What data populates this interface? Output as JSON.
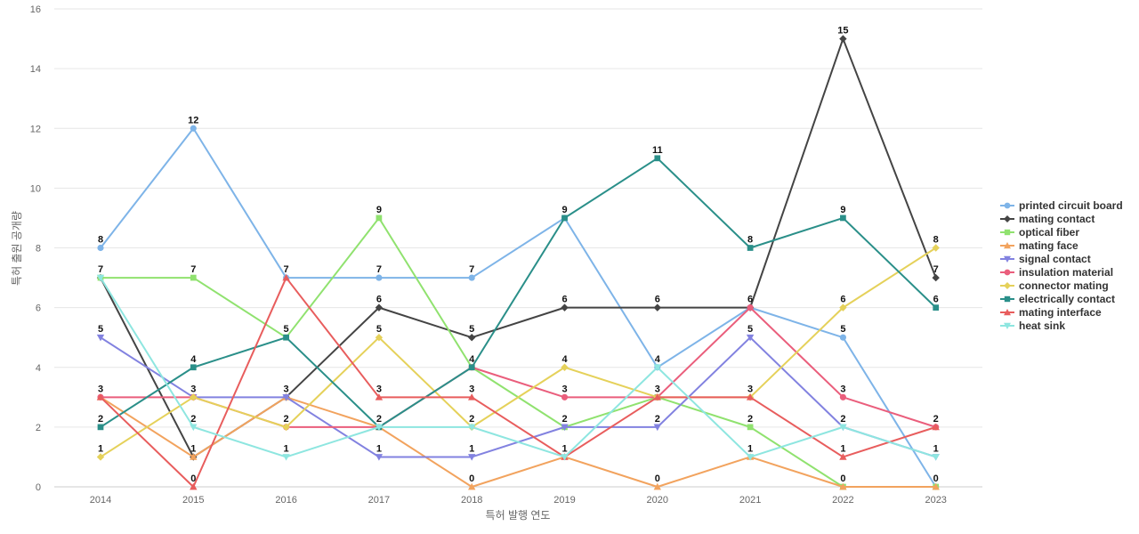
{
  "chart_data": {
    "type": "line",
    "xlabel": "특허 발행 연도",
    "ylabel": "특허 출원 공개량",
    "ylim": [
      0,
      16
    ],
    "yticks": [
      0,
      2,
      4,
      6,
      8,
      10,
      12,
      14,
      16
    ],
    "grid": true,
    "legend_position": "right",
    "categories": [
      "2014",
      "2015",
      "2016",
      "2017",
      "2018",
      "2019",
      "2020",
      "2021",
      "2022",
      "2023"
    ],
    "series": [
      {
        "name": "printed circuit board",
        "color": "#7eb4e8",
        "marker": "circle",
        "values": [
          8,
          12,
          7,
          7,
          7,
          9,
          4,
          6,
          5,
          0
        ]
      },
      {
        "name": "mating contact",
        "color": "#444444",
        "marker": "diamond",
        "values": [
          7,
          1,
          3,
          6,
          5,
          6,
          6,
          6,
          15,
          7
        ]
      },
      {
        "name": "optical fiber",
        "color": "#90e26f",
        "marker": "square",
        "values": [
          7,
          7,
          5,
          9,
          4,
          2,
          3,
          2,
          0,
          0
        ]
      },
      {
        "name": "mating face",
        "color": "#f2a35e",
        "marker": "triangle-up",
        "values": [
          3,
          1,
          3,
          2,
          0,
          1,
          0,
          1,
          0,
          0
        ]
      },
      {
        "name": "signal contact",
        "color": "#8282e0",
        "marker": "triangle-down",
        "values": [
          5,
          3,
          3,
          1,
          1,
          2,
          2,
          5,
          2,
          1
        ]
      },
      {
        "name": "insulation material",
        "color": "#ea5e7c",
        "marker": "circle",
        "values": [
          3,
          3,
          2,
          2,
          4,
          3,
          3,
          6,
          3,
          2
        ]
      },
      {
        "name": "connector mating",
        "color": "#e5d15a",
        "marker": "diamond",
        "values": [
          1,
          3,
          2,
          5,
          2,
          4,
          3,
          3,
          6,
          8
        ]
      },
      {
        "name": "electrically contact",
        "color": "#2a8f89",
        "marker": "square",
        "values": [
          2,
          4,
          5,
          2,
          4,
          9,
          11,
          8,
          9,
          6
        ]
      },
      {
        "name": "mating interface",
        "color": "#e85d5d",
        "marker": "triangle-up",
        "values": [
          3,
          0,
          7,
          3,
          3,
          1,
          3,
          3,
          1,
          2
        ]
      },
      {
        "name": "heat sink",
        "color": "#8ee6e0",
        "marker": "triangle-down",
        "values": [
          7,
          2,
          1,
          2,
          2,
          1,
          4,
          1,
          2,
          1
        ]
      }
    ],
    "data_labels": [
      {
        "x": "2014",
        "y": 8,
        "text": "8"
      },
      {
        "x": "2014",
        "y": 7,
        "text": "7"
      },
      {
        "x": "2014",
        "y": 5,
        "text": "5"
      },
      {
        "x": "2014",
        "y": 3,
        "text": "3"
      },
      {
        "x": "2014",
        "y": 2,
        "text": "2"
      },
      {
        "x": "2014",
        "y": 1,
        "text": "1"
      },
      {
        "x": "2015",
        "y": 12,
        "text": "12"
      },
      {
        "x": "2015",
        "y": 7,
        "text": "7"
      },
      {
        "x": "2015",
        "y": 4,
        "text": "4"
      },
      {
        "x": "2015",
        "y": 3,
        "text": "3"
      },
      {
        "x": "2015",
        "y": 2,
        "text": "2"
      },
      {
        "x": "2015",
        "y": 1,
        "text": "1"
      },
      {
        "x": "2015",
        "y": 0,
        "text": "0"
      },
      {
        "x": "2016",
        "y": 7,
        "text": "7"
      },
      {
        "x": "2016",
        "y": 5,
        "text": "5"
      },
      {
        "x": "2016",
        "y": 3,
        "text": "3"
      },
      {
        "x": "2016",
        "y": 2,
        "text": "2"
      },
      {
        "x": "2016",
        "y": 1,
        "text": "1"
      },
      {
        "x": "2017",
        "y": 9,
        "text": "9"
      },
      {
        "x": "2017",
        "y": 7,
        "text": "7"
      },
      {
        "x": "2017",
        "y": 6,
        "text": "6"
      },
      {
        "x": "2017",
        "y": 5,
        "text": "5"
      },
      {
        "x": "2017",
        "y": 3,
        "text": "3"
      },
      {
        "x": "2017",
        "y": 2,
        "text": "2"
      },
      {
        "x": "2017",
        "y": 1,
        "text": "1"
      },
      {
        "x": "2018",
        "y": 7,
        "text": "7"
      },
      {
        "x": "2018",
        "y": 5,
        "text": "5"
      },
      {
        "x": "2018",
        "y": 4,
        "text": "4"
      },
      {
        "x": "2018",
        "y": 3,
        "text": "3"
      },
      {
        "x": "2018",
        "y": 2,
        "text": "2"
      },
      {
        "x": "2018",
        "y": 1,
        "text": "1"
      },
      {
        "x": "2018",
        "y": 0,
        "text": "0"
      },
      {
        "x": "2019",
        "y": 9,
        "text": "9"
      },
      {
        "x": "2019",
        "y": 6,
        "text": "6"
      },
      {
        "x": "2019",
        "y": 4,
        "text": "4"
      },
      {
        "x": "2019",
        "y": 3,
        "text": "3"
      },
      {
        "x": "2019",
        "y": 2,
        "text": "2"
      },
      {
        "x": "2019",
        "y": 1,
        "text": "1"
      },
      {
        "x": "2020",
        "y": 11,
        "text": "11"
      },
      {
        "x": "2020",
        "y": 6,
        "text": "6"
      },
      {
        "x": "2020",
        "y": 4,
        "text": "4"
      },
      {
        "x": "2020",
        "y": 3,
        "text": "3"
      },
      {
        "x": "2020",
        "y": 2,
        "text": "2"
      },
      {
        "x": "2020",
        "y": 0,
        "text": "0"
      },
      {
        "x": "2021",
        "y": 8,
        "text": "8"
      },
      {
        "x": "2021",
        "y": 6,
        "text": "6"
      },
      {
        "x": "2021",
        "y": 5,
        "text": "5"
      },
      {
        "x": "2021",
        "y": 3,
        "text": "3"
      },
      {
        "x": "2021",
        "y": 2,
        "text": "2"
      },
      {
        "x": "2021",
        "y": 1,
        "text": "1"
      },
      {
        "x": "2022",
        "y": 15,
        "text": "15"
      },
      {
        "x": "2022",
        "y": 9,
        "text": "9"
      },
      {
        "x": "2022",
        "y": 6,
        "text": "6"
      },
      {
        "x": "2022",
        "y": 5,
        "text": "5"
      },
      {
        "x": "2022",
        "y": 3,
        "text": "3"
      },
      {
        "x": "2022",
        "y": 2,
        "text": "2"
      },
      {
        "x": "2022",
        "y": 1,
        "text": "1"
      },
      {
        "x": "2022",
        "y": 0,
        "text": "0"
      },
      {
        "x": "2023",
        "y": 8,
        "text": "8"
      },
      {
        "x": "2023",
        "y": 7,
        "text": "7"
      },
      {
        "x": "2023",
        "y": 6,
        "text": "6"
      },
      {
        "x": "2023",
        "y": 2,
        "text": "2"
      },
      {
        "x": "2023",
        "y": 1,
        "text": "1"
      },
      {
        "x": "2023",
        "y": 0,
        "text": "0"
      }
    ]
  }
}
